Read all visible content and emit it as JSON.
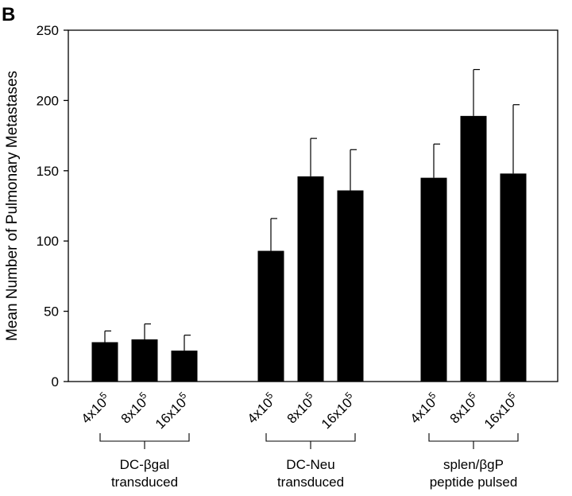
{
  "panel_label": "B",
  "chart_data": {
    "type": "bar",
    "ylabel": "Mean Number of Pulmonary Metastases",
    "ylim": [
      0,
      250
    ],
    "yticks": [
      0,
      50,
      100,
      150,
      200,
      250
    ],
    "grid": false,
    "bar_color": "#000000",
    "error_bars": true,
    "groups": [
      {
        "label_lines": [
          "DC-βgal",
          "transduced"
        ],
        "bars": [
          {
            "label": "4x10",
            "exp": "5",
            "value": 28,
            "error": 8
          },
          {
            "label": "8x10",
            "exp": "5",
            "value": 30,
            "error": 11
          },
          {
            "label": "16x10",
            "exp": "5",
            "value": 22,
            "error": 11
          }
        ]
      },
      {
        "label_lines": [
          "DC-Neu",
          "transduced"
        ],
        "bars": [
          {
            "label": "4x10",
            "exp": "5",
            "value": 93,
            "error": 23
          },
          {
            "label": "8x10",
            "exp": "5",
            "value": 146,
            "error": 27
          },
          {
            "label": "16x10",
            "exp": "5",
            "value": 136,
            "error": 29
          }
        ]
      },
      {
        "label_lines": [
          "splen/βgP",
          "peptide pulsed"
        ],
        "bars": [
          {
            "label": "4x10",
            "exp": "5",
            "value": 145,
            "error": 24
          },
          {
            "label": "8x10",
            "exp": "5",
            "value": 189,
            "error": 33
          },
          {
            "label": "16x10",
            "exp": "5",
            "value": 148,
            "error": 49
          }
        ]
      }
    ]
  }
}
